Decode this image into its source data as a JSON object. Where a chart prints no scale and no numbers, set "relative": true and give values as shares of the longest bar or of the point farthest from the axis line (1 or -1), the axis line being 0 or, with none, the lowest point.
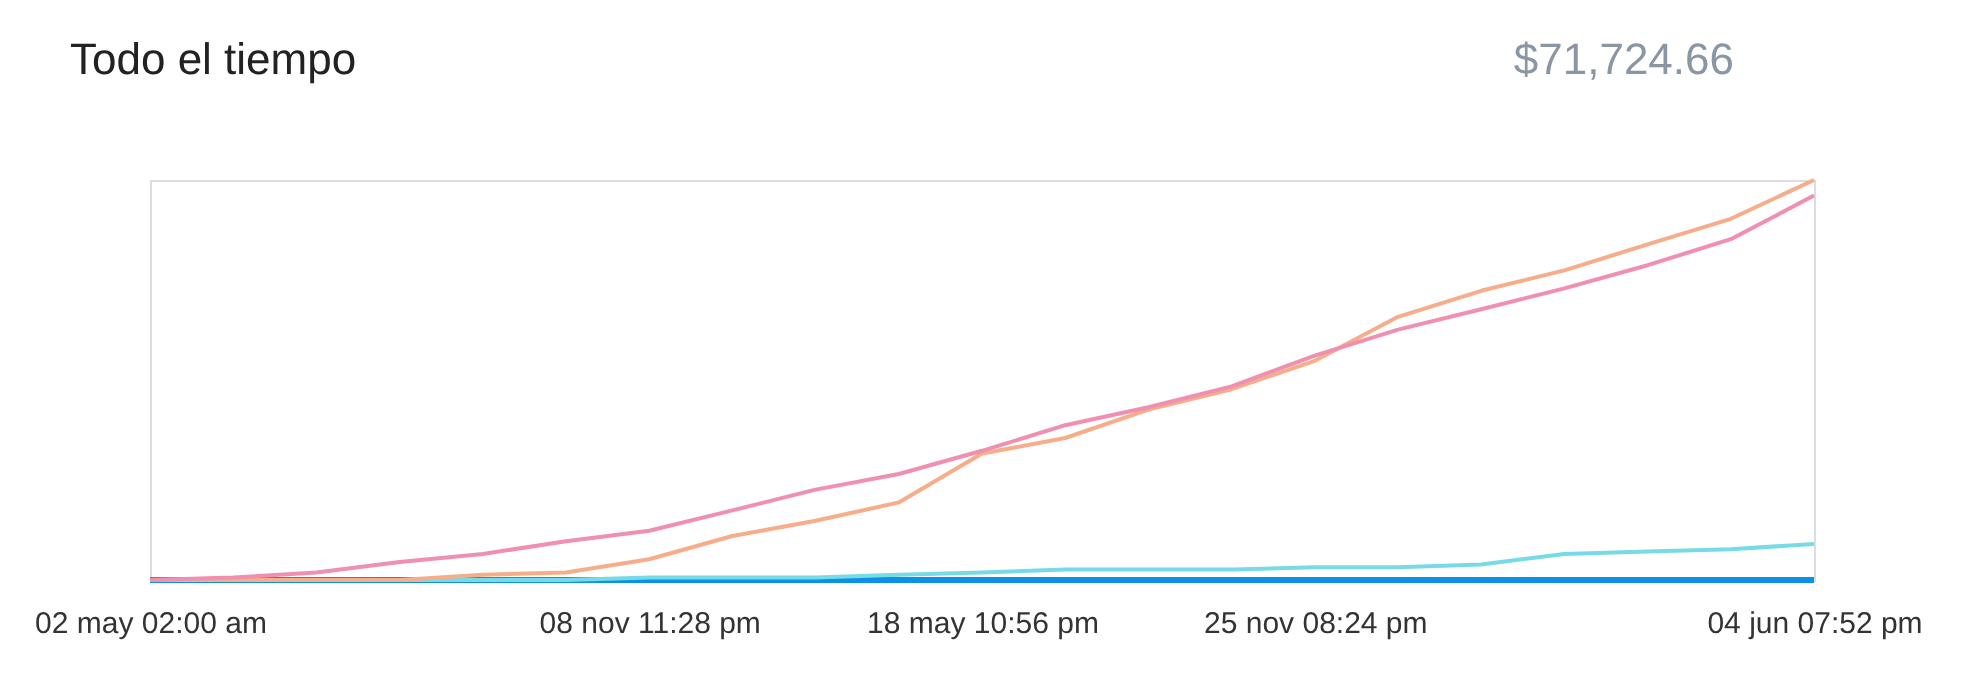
{
  "chart_data": {
    "type": "line",
    "title": "Todo el tiempo",
    "relative": true,
    "line_style": "solid",
    "marker": "none",
    "annotations": [
      "$71,724.66"
    ],
    "categories": [
      "02 may 02:00 am",
      null,
      null,
      null,
      null,
      null,
      "08 nov 11:28 pm",
      null,
      null,
      null,
      "18 may 10:56 pm",
      null,
      null,
      null,
      "25 nov 08:24 pm",
      null,
      null,
      null,
      null,
      null,
      "04 jun 07:52 pm"
    ],
    "series": [
      {
        "color": "#f08fb0",
        "values": [
          0,
          0.006,
          0.019,
          0.045,
          0.065,
          0.097,
          0.123,
          0.174,
          0.226,
          0.265,
          0.323,
          0.387,
          0.432,
          0.484,
          0.561,
          0.626,
          0.677,
          0.729,
          0.787,
          0.852,
          0.961
        ]
      },
      {
        "color": "#f7ad8a",
        "values": [
          0,
          0,
          0,
          0,
          0.013,
          0.019,
          0.052,
          0.11,
          0.148,
          0.194,
          0.316,
          0.355,
          0.426,
          0.477,
          0.548,
          0.658,
          0.723,
          0.774,
          0.839,
          0.903,
          1
        ]
      },
      {
        "color": "#76dbe6",
        "values": [
          null,
          null,
          0,
          0,
          0,
          0,
          0.006,
          0.006,
          0.006,
          0.013,
          0.019,
          0.026,
          0.026,
          0.026,
          0.032,
          0.032,
          0.039,
          0.065,
          0.071,
          0.077,
          0.09
        ]
      },
      {
        "color": "#0d91e6",
        "values": [
          0,
          0,
          0,
          0,
          0,
          0,
          0,
          0,
          0,
          0,
          0,
          0,
          0,
          0,
          0,
          0,
          0,
          0,
          0,
          0,
          0
        ]
      }
    ]
  }
}
